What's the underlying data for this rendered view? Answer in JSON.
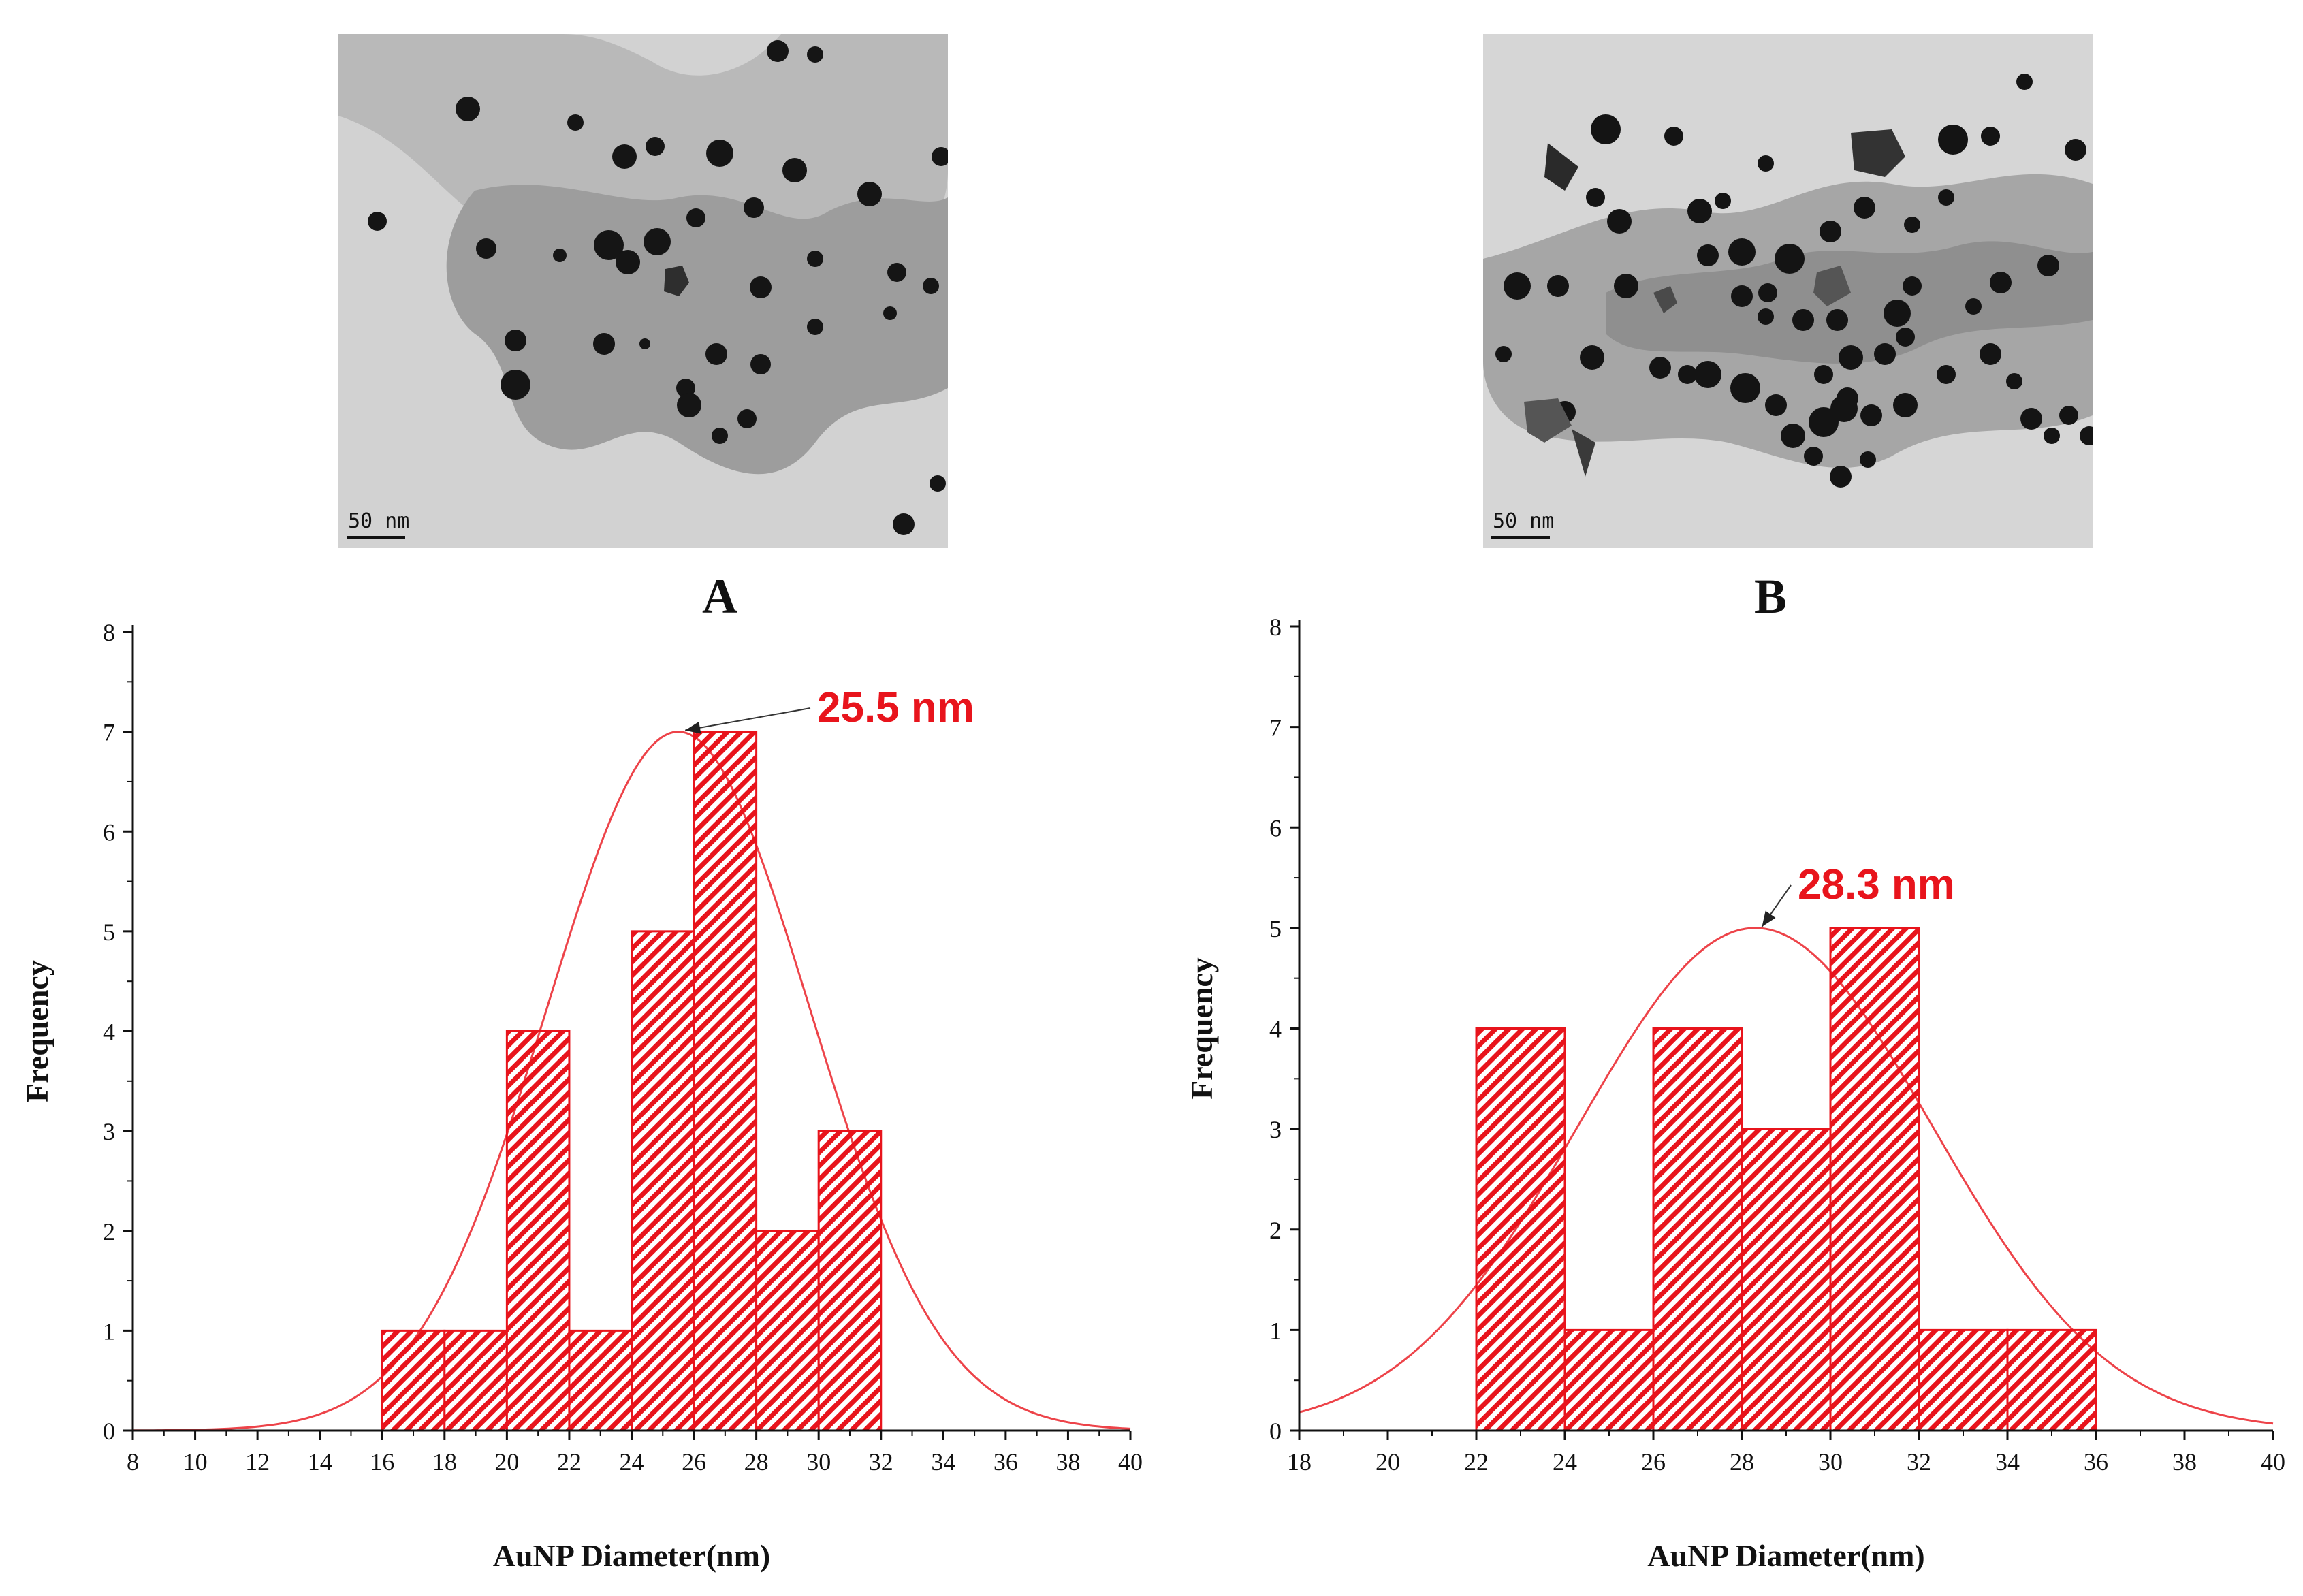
{
  "panels": [
    {
      "label": "A",
      "scale_text": "50 nm"
    },
    {
      "label": "B",
      "scale_text": "50 nm"
    }
  ],
  "colors": {
    "bar": "#e8141c",
    "curve": "#e8141c",
    "peak_text": "#e8141c",
    "axis": "#111111"
  },
  "chart_data": [
    {
      "type": "bar",
      "panel": "A",
      "title": "A",
      "xlabel": "AuNP Diameter(nm)",
      "ylabel": "Frequency",
      "xlim": [
        8,
        40
      ],
      "ylim": [
        0,
        8
      ],
      "xticks": [
        8,
        10,
        12,
        14,
        16,
        18,
        20,
        22,
        24,
        26,
        28,
        30,
        32,
        34,
        36,
        38,
        40
      ],
      "yticks": [
        0,
        1,
        2,
        3,
        4,
        5,
        6,
        7,
        8
      ],
      "bins": [
        [
          16,
          18
        ],
        [
          18,
          20
        ],
        [
          20,
          22
        ],
        [
          22,
          24
        ],
        [
          24,
          26
        ],
        [
          26,
          28
        ],
        [
          28,
          30
        ],
        [
          30,
          32
        ]
      ],
      "values": [
        1,
        1,
        4,
        1,
        5,
        7,
        2,
        3
      ],
      "fit": {
        "type": "gaussian",
        "peak_x": 25.5,
        "peak_y": 7.0,
        "sigma": 4.2
      },
      "annotation": "25.5 nm"
    },
    {
      "type": "bar",
      "panel": "B",
      "title": "B",
      "xlabel": "AuNP Diameter(nm)",
      "ylabel": "Frequency",
      "xlim": [
        18,
        40
      ],
      "ylim": [
        0,
        8
      ],
      "xticks": [
        18,
        20,
        22,
        24,
        26,
        28,
        30,
        32,
        34,
        36,
        38,
        40
      ],
      "yticks": [
        0,
        1,
        2,
        3,
        4,
        5,
        6,
        7,
        8
      ],
      "bins": [
        [
          22,
          24
        ],
        [
          24,
          26
        ],
        [
          26,
          28
        ],
        [
          28,
          30
        ],
        [
          30,
          32
        ],
        [
          32,
          34
        ],
        [
          34,
          36
        ]
      ],
      "values": [
        4,
        1,
        4,
        3,
        5,
        1,
        1
      ],
      "fit": {
        "type": "gaussian",
        "peak_x": 28.3,
        "peak_y": 5.0,
        "sigma": 4.0
      },
      "annotation": "28.3 nm"
    }
  ]
}
